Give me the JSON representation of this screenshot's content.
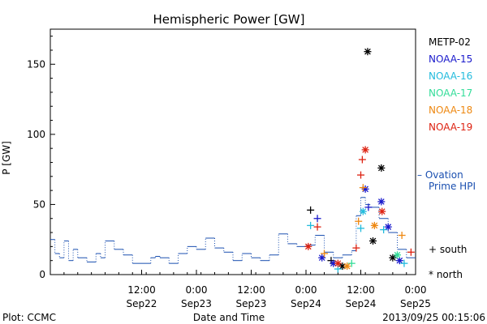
{
  "chart_data": {
    "type": "scatter",
    "title": "Hemispheric Power [GW]",
    "ylabel": "P [GW]",
    "xlabel": "Date and Time",
    "ylim": [
      0,
      175
    ],
    "xlim": [
      "2013-09-21T16:00",
      "2013-09-25T00:00"
    ],
    "y_ticks": [
      0,
      50,
      100,
      150
    ],
    "x_ticks": [
      {
        "x": "2013-09-22T12:00",
        "time": "12:00",
        "date": "Sep22"
      },
      {
        "x": "2013-09-23T00:00",
        "time": "0:00",
        "date": "Sep23"
      },
      {
        "x": "2013-09-23T12:00",
        "time": "12:00",
        "date": "Sep23"
      },
      {
        "x": "2013-09-24T00:00",
        "time": "0:00",
        "date": "Sep24"
      },
      {
        "x": "2013-09-24T12:00",
        "time": "12:00",
        "date": "Sep24"
      },
      {
        "x": "2013-09-25T00:00",
        "time": "0:00",
        "date": "Sep25"
      }
    ],
    "legend": {
      "placement": "right",
      "satellites": [
        {
          "name": "METP-02",
          "color": "#000000"
        },
        {
          "name": "NOAA-15",
          "color": "#1a1acc"
        },
        {
          "name": "NOAA-16",
          "color": "#22bbdd"
        },
        {
          "name": "NOAA-17",
          "color": "#33dd99"
        },
        {
          "name": "NOAA-18",
          "color": "#ee8811"
        },
        {
          "name": "NOAA-19",
          "color": "#dd2211"
        }
      ],
      "ovation_line1": "– Ovation",
      "ovation_line2": "Prime HPI",
      "ovation_color": "#1a4fb0",
      "south_label": "+ south",
      "north_label": "* north"
    },
    "ovation_series": {
      "name": "Ovation Prime HPI",
      "x": [
        "2013-09-21T16:00",
        "2013-09-21T17:00",
        "2013-09-21T18:00",
        "2013-09-21T19:00",
        "2013-09-21T20:00",
        "2013-09-21T21:00",
        "2013-09-21T22:00",
        "2013-09-22T00:00",
        "2013-09-22T02:00",
        "2013-09-22T03:00",
        "2013-09-22T04:00",
        "2013-09-22T06:00",
        "2013-09-22T08:00",
        "2013-09-22T10:00",
        "2013-09-22T12:00",
        "2013-09-22T14:00",
        "2013-09-22T15:00",
        "2013-09-22T16:00",
        "2013-09-22T18:00",
        "2013-09-22T20:00",
        "2013-09-22T22:00",
        "2013-09-23T00:00",
        "2013-09-23T02:00",
        "2013-09-23T04:00",
        "2013-09-23T06:00",
        "2013-09-23T08:00",
        "2013-09-23T10:00",
        "2013-09-23T12:00",
        "2013-09-23T14:00",
        "2013-09-23T16:00",
        "2013-09-23T18:00",
        "2013-09-23T20:00",
        "2013-09-23T22:00",
        "2013-09-24T00:00",
        "2013-09-24T02:00",
        "2013-09-24T04:00",
        "2013-09-24T06:00",
        "2013-09-24T08:00",
        "2013-09-24T10:00",
        "2013-09-24T11:00",
        "2013-09-24T12:00",
        "2013-09-24T13:00",
        "2013-09-24T14:00",
        "2013-09-24T16:00",
        "2013-09-24T18:00",
        "2013-09-24T20:00",
        "2013-09-24T22:00"
      ],
      "y": [
        25,
        15,
        12,
        24,
        10,
        18,
        12,
        9,
        15,
        12,
        24,
        18,
        14,
        8,
        8,
        12,
        13,
        12,
        8,
        15,
        20,
        18,
        26,
        19,
        16,
        10,
        15,
        12,
        10,
        14,
        29,
        22,
        20,
        21,
        28,
        16,
        12,
        14,
        17,
        42,
        55,
        50,
        48,
        40,
        30,
        18,
        12
      ]
    },
    "satellite_points": [
      {
        "sat": "METP-02",
        "hemi": "north",
        "x": "2013-09-24T13:30",
        "y": 159
      },
      {
        "sat": "METP-02",
        "hemi": "north",
        "x": "2013-09-24T16:30",
        "y": 76
      },
      {
        "sat": "METP-02",
        "hemi": "south",
        "x": "2013-09-24T01:00",
        "y": 46
      },
      {
        "sat": "METP-02",
        "hemi": "north",
        "x": "2013-09-24T14:40",
        "y": 24
      },
      {
        "sat": "METP-02",
        "hemi": "north",
        "x": "2013-09-24T19:00",
        "y": 12
      },
      {
        "sat": "METP-02",
        "hemi": "south",
        "x": "2013-09-24T05:30",
        "y": 10
      },
      {
        "sat": "METP-02",
        "hemi": "north",
        "x": "2013-09-24T08:00",
        "y": 6
      },
      {
        "sat": "NOAA-15",
        "hemi": "north",
        "x": "2013-09-24T13:00",
        "y": 61
      },
      {
        "sat": "NOAA-15",
        "hemi": "north",
        "x": "2013-09-24T16:30",
        "y": 52
      },
      {
        "sat": "NOAA-15",
        "hemi": "south",
        "x": "2013-09-24T02:30",
        "y": 40
      },
      {
        "sat": "NOAA-15",
        "hemi": "north",
        "x": "2013-09-24T18:00",
        "y": 34
      },
      {
        "sat": "NOAA-15",
        "hemi": "south",
        "x": "2013-09-24T13:40",
        "y": 48
      },
      {
        "sat": "NOAA-15",
        "hemi": "north",
        "x": "2013-09-24T03:30",
        "y": 12
      },
      {
        "sat": "NOAA-15",
        "hemi": "north",
        "x": "2013-09-24T06:00",
        "y": 8
      },
      {
        "sat": "NOAA-15",
        "hemi": "north",
        "x": "2013-09-24T20:30",
        "y": 10
      },
      {
        "sat": "NOAA-16",
        "hemi": "south",
        "x": "2013-09-24T01:00",
        "y": 35
      },
      {
        "sat": "NOAA-16",
        "hemi": "south",
        "x": "2013-09-24T12:00",
        "y": 33
      },
      {
        "sat": "NOAA-16",
        "hemi": "south",
        "x": "2013-09-24T17:00",
        "y": 32
      },
      {
        "sat": "NOAA-16",
        "hemi": "north",
        "x": "2013-09-24T12:30",
        "y": 45
      },
      {
        "sat": "NOAA-16",
        "hemi": "south",
        "x": "2013-09-24T21:30",
        "y": 8
      },
      {
        "sat": "NOAA-16",
        "hemi": "south",
        "x": "2013-09-24T07:00",
        "y": 4
      },
      {
        "sat": "NOAA-17",
        "hemi": "south",
        "x": "2013-09-24T10:00",
        "y": 8
      },
      {
        "sat": "NOAA-17",
        "hemi": "north",
        "x": "2013-09-24T20:00",
        "y": 14
      },
      {
        "sat": "NOAA-18",
        "hemi": "south",
        "x": "2013-09-24T12:30",
        "y": 62
      },
      {
        "sat": "NOAA-18",
        "hemi": "south",
        "x": "2013-09-24T11:30",
        "y": 38
      },
      {
        "sat": "NOAA-18",
        "hemi": "north",
        "x": "2013-09-24T15:00",
        "y": 35
      },
      {
        "sat": "NOAA-18",
        "hemi": "south",
        "x": "2013-09-24T04:00",
        "y": 15
      },
      {
        "sat": "NOAA-18",
        "hemi": "north",
        "x": "2013-09-24T09:00",
        "y": 6
      },
      {
        "sat": "NOAA-18",
        "hemi": "south",
        "x": "2013-09-24T21:00",
        "y": 28
      },
      {
        "sat": "NOAA-19",
        "hemi": "north",
        "x": "2013-09-24T13:00",
        "y": 89
      },
      {
        "sat": "NOAA-19",
        "hemi": "south",
        "x": "2013-09-24T12:00",
        "y": 71
      },
      {
        "sat": "NOAA-19",
        "hemi": "south",
        "x": "2013-09-24T12:20",
        "y": 82
      },
      {
        "sat": "NOAA-19",
        "hemi": "north",
        "x": "2013-09-24T16:40",
        "y": 45
      },
      {
        "sat": "NOAA-19",
        "hemi": "south",
        "x": "2013-09-24T02:30",
        "y": 34
      },
      {
        "sat": "NOAA-19",
        "hemi": "north",
        "x": "2013-09-24T00:30",
        "y": 20
      },
      {
        "sat": "NOAA-19",
        "hemi": "south",
        "x": "2013-09-24T11:00",
        "y": 19
      },
      {
        "sat": "NOAA-19",
        "hemi": "south",
        "x": "2013-09-24T23:00",
        "y": 16
      },
      {
        "sat": "NOAA-19",
        "hemi": "north",
        "x": "2013-09-24T07:00",
        "y": 8
      }
    ]
  },
  "footer": {
    "plot_credit": "Plot: CCMC",
    "timestamp": "2013/09/25 00:15:06"
  }
}
